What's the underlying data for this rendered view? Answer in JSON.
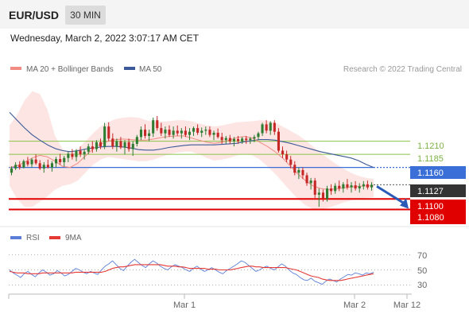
{
  "header": {
    "symbol": "EUR/USD",
    "timeframe": "30 MIN"
  },
  "datetime": "Wednesday, March 2, 2022 3:07:17 AM CET",
  "colors": {
    "ma20": "#f28b82",
    "ma50": "#3b5998",
    "bollinger": "#fde0de",
    "up": "#2e7d32",
    "down": "#c62828",
    "rsi": "#5b7fd8",
    "rsi_ma": "#e53935",
    "resistance": "#8bc34a",
    "pivot": "#3a6fd8",
    "support": "#e10000",
    "current": "#333333"
  },
  "chart_data": [
    {
      "type": "candlestick",
      "legend": [
        {
          "name": "MA 20 + Bollinger Bands",
          "color": "#f28b82"
        },
        {
          "name": "MA 50",
          "color": "#3b5998"
        }
      ],
      "credit": "Research © 2022 Trading Central",
      "ylim": [
        1.1055,
        1.1335
      ],
      "levels": [
        {
          "value": 1.121,
          "label": "1.1210",
          "kind": "resistance"
        },
        {
          "value": 1.1185,
          "label": "1.1185",
          "kind": "resistance"
        },
        {
          "value": 1.116,
          "label": "1.1160",
          "kind": "pivot"
        },
        {
          "value": 1.1127,
          "label": "1.1127",
          "kind": "current"
        },
        {
          "value": 1.11,
          "label": "1.1100",
          "kind": "support"
        },
        {
          "value": 1.108,
          "label": "1.1080",
          "kind": "support"
        }
      ],
      "ma50_points": [
        1.1265,
        1.125,
        1.1235,
        1.1222,
        1.1212,
        1.1203,
        1.1196,
        1.1192,
        1.119,
        1.1192,
        1.1195,
        1.1197,
        1.1199,
        1.12,
        1.12,
        1.1199,
        1.1197,
        1.1194,
        1.1193,
        1.1193,
        1.1195,
        1.1198,
        1.12,
        1.1202,
        1.1203,
        1.1203,
        1.1203,
        1.1203,
        1.1204,
        1.1205,
        1.1206,
        1.1209,
        1.1211,
        1.1213,
        1.1213,
        1.1212,
        1.1209,
        1.1206,
        1.1202,
        1.1198,
        1.1194,
        1.119,
        1.1187,
        1.1184,
        1.1181,
        1.1178,
        1.1173,
        1.1166,
        1.116
      ],
      "ma20_points": [
        1.116,
        1.1163,
        1.117,
        1.1178,
        1.1183,
        1.118,
        1.1172,
        1.1162,
        1.116,
        1.1168,
        1.1182,
        1.1195,
        1.1205,
        1.121,
        1.1213,
        1.1214,
        1.1213,
        1.1212,
        1.1212,
        1.1214,
        1.1217,
        1.1219,
        1.122,
        1.122,
        1.1216,
        1.1212,
        1.1208,
        1.1206,
        1.1208,
        1.1212,
        1.1217,
        1.1219,
        1.1216,
        1.1208,
        1.12,
        1.119,
        1.1178,
        1.1163,
        1.1148,
        1.1135,
        1.1125,
        1.112,
        1.1118,
        1.1119,
        1.1121,
        1.1123,
        1.1124,
        1.1125,
        1.1125
      ],
      "bb_upper": [
        1.124,
        1.126,
        1.1288,
        1.1305,
        1.13,
        1.127,
        1.122,
        1.1195,
        1.1188,
        1.1195,
        1.121,
        1.1225,
        1.1238,
        1.1246,
        1.1252,
        1.1255,
        1.1256,
        1.1255,
        1.125,
        1.1247,
        1.1247,
        1.1248,
        1.125,
        1.125,
        1.1248,
        1.1244,
        1.124,
        1.1238,
        1.124,
        1.1243,
        1.1246,
        1.1247,
        1.1248,
        1.125,
        1.1249,
        1.1245,
        1.1238,
        1.123,
        1.1222,
        1.1212,
        1.12,
        1.1188,
        1.1177,
        1.1167,
        1.1158,
        1.115,
        1.1144,
        1.114,
        1.1138
      ],
      "bb_lower": [
        1.1125,
        1.11,
        1.1085,
        1.1085,
        1.1095,
        1.1105,
        1.1118,
        1.1125,
        1.1128,
        1.1135,
        1.115,
        1.1165,
        1.1175,
        1.118,
        1.1178,
        1.1176,
        1.1174,
        1.1172,
        1.1172,
        1.1175,
        1.118,
        1.1185,
        1.1188,
        1.119,
        1.119,
        1.1185,
        1.1178,
        1.1173,
        1.1175,
        1.1178,
        1.1183,
        1.1185,
        1.1183,
        1.1175,
        1.1162,
        1.1148,
        1.1132,
        1.1116,
        1.11,
        1.1088,
        1.1081,
        1.108,
        1.1083,
        1.1088,
        1.1093,
        1.1097,
        1.11,
        1.1102,
        1.1103
      ],
      "candles": [
        [
          1.115,
          1.1162,
          1.1145,
          1.1158
        ],
        [
          1.1158,
          1.117,
          1.1155,
          1.1165
        ],
        [
          1.1165,
          1.1172,
          1.1156,
          1.116
        ],
        [
          1.116,
          1.1175,
          1.1158,
          1.1172
        ],
        [
          1.1172,
          1.118,
          1.1162,
          1.1166
        ],
        [
          1.1166,
          1.1178,
          1.116,
          1.1175
        ],
        [
          1.1175,
          1.1185,
          1.1165,
          1.1168
        ],
        [
          1.1168,
          1.1174,
          1.1155,
          1.1158
        ],
        [
          1.1158,
          1.117,
          1.115,
          1.1165
        ],
        [
          1.1165,
          1.1175,
          1.1158,
          1.116
        ],
        [
          1.116,
          1.1172,
          1.1152,
          1.1168
        ],
        [
          1.1168,
          1.118,
          1.116,
          1.1176
        ],
        [
          1.1176,
          1.1186,
          1.1165,
          1.117
        ],
        [
          1.117,
          1.1182,
          1.1162,
          1.1178
        ],
        [
          1.1178,
          1.119,
          1.117,
          1.1186
        ],
        [
          1.1186,
          1.1195,
          1.1175,
          1.118
        ],
        [
          1.118,
          1.1195,
          1.1172,
          1.1192
        ],
        [
          1.1192,
          1.12,
          1.118,
          1.1185
        ],
        [
          1.1185,
          1.1195,
          1.1175,
          1.119
        ],
        [
          1.119,
          1.1205,
          1.1185,
          1.12
        ],
        [
          1.12,
          1.121,
          1.1188,
          1.1195
        ],
        [
          1.1195,
          1.1212,
          1.119,
          1.1208
        ],
        [
          1.1208,
          1.1215,
          1.1195,
          1.12
        ],
        [
          1.12,
          1.1245,
          1.1195,
          1.1238
        ],
        [
          1.1238,
          1.1246,
          1.121,
          1.1215
        ],
        [
          1.1215,
          1.1225,
          1.1195,
          1.12
        ],
        [
          1.12,
          1.1215,
          1.119,
          1.121
        ],
        [
          1.121,
          1.1218,
          1.1195,
          1.1198
        ],
        [
          1.1198,
          1.1212,
          1.1185,
          1.1208
        ],
        [
          1.1208,
          1.1215,
          1.119,
          1.1195
        ],
        [
          1.1195,
          1.121,
          1.1182,
          1.1205
        ],
        [
          1.1205,
          1.1222,
          1.12,
          1.1218
        ],
        [
          1.1218,
          1.1238,
          1.1212,
          1.1232
        ],
        [
          1.1232,
          1.1242,
          1.1215,
          1.122
        ],
        [
          1.122,
          1.1232,
          1.121,
          1.1225
        ],
        [
          1.1225,
          1.1255,
          1.1218,
          1.125
        ],
        [
          1.125,
          1.1258,
          1.123,
          1.1235
        ],
        [
          1.1235,
          1.1245,
          1.122,
          1.1225
        ],
        [
          1.1225,
          1.1238,
          1.1215,
          1.1232
        ],
        [
          1.1232,
          1.124,
          1.1218,
          1.1222
        ],
        [
          1.1222,
          1.1238,
          1.1215,
          1.123
        ],
        [
          1.123,
          1.124,
          1.122,
          1.1225
        ],
        [
          1.1225,
          1.1235,
          1.1215,
          1.123
        ],
        [
          1.123,
          1.1238,
          1.1218,
          1.1222
        ],
        [
          1.1222,
          1.1235,
          1.1212,
          1.1228
        ],
        [
          1.1228,
          1.1238,
          1.122,
          1.1235
        ],
        [
          1.1235,
          1.1242,
          1.1222,
          1.1226
        ],
        [
          1.1226,
          1.1236,
          1.1218,
          1.123
        ],
        [
          1.123,
          1.1238,
          1.1222,
          1.1232
        ],
        [
          1.1232,
          1.1238,
          1.1218,
          1.1222
        ],
        [
          1.1222,
          1.123,
          1.1212,
          1.1226
        ],
        [
          1.1226,
          1.1234,
          1.1215,
          1.1218
        ],
        [
          1.1218,
          1.1226,
          1.1205,
          1.1212
        ],
        [
          1.1212,
          1.122,
          1.1205,
          1.1216
        ],
        [
          1.1216,
          1.1222,
          1.1205,
          1.121
        ],
        [
          1.121,
          1.1218,
          1.12,
          1.1214
        ],
        [
          1.1214,
          1.122,
          1.1205,
          1.121
        ],
        [
          1.121,
          1.1218,
          1.1205,
          1.1215
        ],
        [
          1.1215,
          1.122,
          1.1205,
          1.1212
        ],
        [
          1.1212,
          1.1218,
          1.1205,
          1.1215
        ],
        [
          1.1215,
          1.1222,
          1.1208,
          1.1218
        ],
        [
          1.1218,
          1.1228,
          1.1212,
          1.1225
        ],
        [
          1.1225,
          1.1245,
          1.122,
          1.1242
        ],
        [
          1.1242,
          1.125,
          1.1225,
          1.123
        ],
        [
          1.123,
          1.1248,
          1.1222,
          1.1245
        ],
        [
          1.1245,
          1.125,
          1.1222,
          1.1228
        ],
        [
          1.1228,
          1.1235,
          1.1188,
          1.1192
        ],
        [
          1.1192,
          1.12,
          1.1178,
          1.1185
        ],
        [
          1.1185,
          1.1192,
          1.117,
          1.1175
        ],
        [
          1.1175,
          1.1182,
          1.1158,
          1.1165
        ],
        [
          1.1165,
          1.1172,
          1.1145,
          1.115
        ],
        [
          1.115,
          1.116,
          1.1138,
          1.1155
        ],
        [
          1.1155,
          1.116,
          1.1138,
          1.1145
        ],
        [
          1.1145,
          1.115,
          1.1125,
          1.113
        ],
        [
          1.113,
          1.114,
          1.1118,
          1.1135
        ],
        [
          1.1135,
          1.114,
          1.1102,
          1.1108
        ],
        [
          1.1108,
          1.112,
          1.1085,
          1.1112
        ],
        [
          1.1112,
          1.1118,
          1.1095,
          1.11
        ],
        [
          1.11,
          1.1125,
          1.1095,
          1.112
        ],
        [
          1.112,
          1.1128,
          1.1108,
          1.1115
        ],
        [
          1.1115,
          1.113,
          1.111,
          1.1125
        ],
        [
          1.1125,
          1.1135,
          1.1115,
          1.112
        ],
        [
          1.112,
          1.1132,
          1.1112,
          1.1128
        ],
        [
          1.1128,
          1.1138,
          1.1118,
          1.1122
        ],
        [
          1.1122,
          1.1132,
          1.1112,
          1.1126
        ],
        [
          1.1126,
          1.1134,
          1.1116,
          1.112
        ],
        [
          1.112,
          1.113,
          1.1112,
          1.1124
        ],
        [
          1.1124,
          1.1134,
          1.1118,
          1.1128
        ],
        [
          1.1128,
          1.1135,
          1.1118,
          1.1122
        ],
        [
          1.1122,
          1.1132,
          1.1116,
          1.1127
        ]
      ],
      "projection": {
        "from": 1.1127,
        "to": 1.108
      }
    },
    {
      "type": "line",
      "legend": [
        {
          "name": "RSI",
          "color": "#5b7fd8"
        },
        {
          "name": "9MA",
          "color": "#e53935"
        }
      ],
      "ylim": [
        20,
        80
      ],
      "y_ticks": [
        70,
        50,
        30
      ],
      "x_ticks": [
        "Mar 1",
        "Mar 2",
        "Mar 12"
      ],
      "rsi": [
        50,
        46,
        43,
        40,
        45,
        48,
        44,
        41,
        46,
        50,
        47,
        43,
        45,
        49,
        46,
        42,
        44,
        48,
        52,
        50,
        47,
        45,
        48,
        46,
        44,
        50,
        55,
        58,
        62,
        57,
        52,
        49,
        55,
        60,
        64,
        60,
        56,
        53,
        58,
        62,
        59,
        55,
        52,
        50,
        54,
        57,
        55,
        53,
        50,
        48,
        52,
        55,
        51,
        48,
        50,
        53,
        50,
        47,
        45,
        49,
        52,
        55,
        58,
        62,
        60,
        56,
        52,
        48,
        50,
        53,
        55,
        52,
        50,
        54,
        58,
        55,
        50,
        46,
        44,
        40,
        37,
        36,
        39,
        35,
        33,
        31,
        35,
        38,
        36,
        34,
        38,
        41,
        44,
        43,
        46,
        45,
        43,
        46,
        45,
        47
      ],
      "rsi_ma": [
        48,
        47,
        46,
        46,
        46,
        45,
        45,
        45,
        45,
        46,
        46,
        46,
        46,
        46,
        46,
        46,
        46,
        46,
        47,
        47,
        47,
        47,
        47,
        47,
        47,
        47,
        48,
        50,
        52,
        53,
        54,
        54,
        55,
        56,
        57,
        57,
        57,
        57,
        57,
        57,
        57,
        57,
        56,
        55,
        55,
        55,
        54,
        54,
        53,
        52,
        52,
        52,
        52,
        52,
        51,
        51,
        51,
        50,
        50,
        50,
        50,
        51,
        52,
        53,
        54,
        55,
        55,
        54,
        54,
        53,
        53,
        53,
        53,
        53,
        53,
        53,
        52,
        51,
        50,
        48,
        46,
        44,
        42,
        41,
        40,
        38,
        37,
        36,
        36,
        36,
        36,
        37,
        38,
        39,
        40,
        41,
        42,
        43,
        44,
        45
      ]
    }
  ]
}
